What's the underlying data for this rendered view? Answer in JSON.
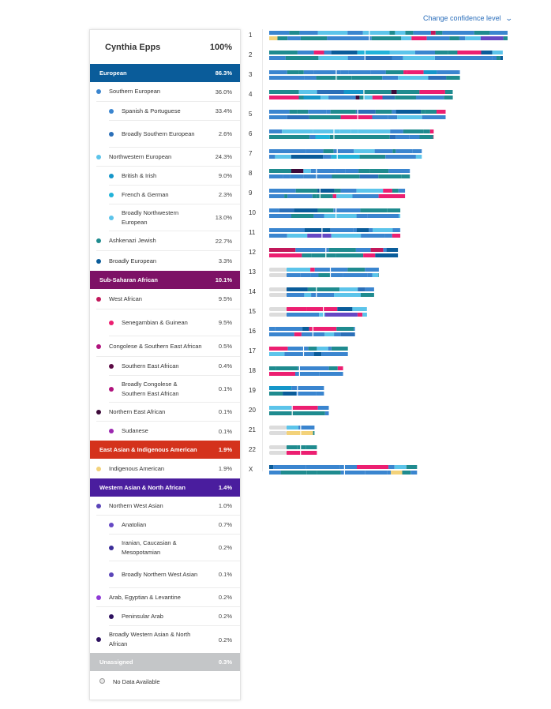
{
  "header": {
    "confidence_link": "Change confidence level"
  },
  "profile": {
    "name": "Cynthia Epps",
    "total": "100%"
  },
  "ancestry": [
    {
      "type": "cat",
      "label": "European",
      "pct": "86.3%",
      "color": "#0a5c9a",
      "h": 23
    },
    {
      "type": "l1",
      "label": "Southern European",
      "pct": "36.0%",
      "color": "#3a85cf",
      "h": 25
    },
    {
      "type": "l2",
      "label": "Spanish & Portuguese",
      "pct": "33.4%",
      "color": "#3a85cf",
      "h": 24
    },
    {
      "type": "l2",
      "label": "Broadly Southern European",
      "pct": "2.6%",
      "color": "#2b6fb8",
      "h": 34
    },
    {
      "type": "l1",
      "label": "Northwestern European",
      "pct": "24.3%",
      "color": "#5cc4ea",
      "h": 24
    },
    {
      "type": "l2",
      "label": "British & Irish",
      "pct": "9.0%",
      "color": "#1596c9",
      "h": 24
    },
    {
      "type": "l2",
      "label": "French & German",
      "pct": "2.3%",
      "color": "#22b3d9",
      "h": 24
    },
    {
      "type": "l2",
      "label": "Broadly Northwestern European",
      "pct": "13.0%",
      "color": "#5cc4ea",
      "h": 34
    },
    {
      "type": "l1",
      "label": "Ashkenazi Jewish",
      "pct": "22.7%",
      "color": "#1f8b8f",
      "h": 25
    },
    {
      "type": "l1",
      "label": "Broadly European",
      "pct": "3.3%",
      "color": "#0a5c9a",
      "h": 25,
      "last": true
    },
    {
      "type": "cat",
      "label": "Sub-Saharan African",
      "pct": "10.1%",
      "color": "#7d1266",
      "h": 23
    },
    {
      "type": "l1",
      "label": "West African",
      "pct": "9.5%",
      "color": "#c2185b",
      "h": 26
    },
    {
      "type": "l2",
      "label": "Senegambian & Guinean",
      "pct": "9.5%",
      "color": "#ec1f71",
      "h": 34
    },
    {
      "type": "l1",
      "label": "Congolese & Southern East African",
      "pct": "0.5%",
      "color": "#b0137d",
      "h": 26
    },
    {
      "type": "l2",
      "label": "Southern East African",
      "pct": "0.4%",
      "color": "#5c0b45",
      "h": 24
    },
    {
      "type": "l2",
      "label": "Broadly Congolese & Southern East African",
      "pct": "0.1%",
      "color": "#b0137d",
      "h": 34
    },
    {
      "type": "l1",
      "label": "Northern East African",
      "pct": "0.1%",
      "color": "#3d0a3a",
      "h": 24
    },
    {
      "type": "l2",
      "label": "Sudanese",
      "pct": "0.1%",
      "color": "#9c27b0",
      "h": 24,
      "last": true
    },
    {
      "type": "cat",
      "label": "East Asian & Indigenous American",
      "pct": "1.9%",
      "color": "#d4321c",
      "h": 23
    },
    {
      "type": "l1",
      "label": "Indigenous American",
      "pct": "1.9%",
      "color": "#f3d27a",
      "h": 25,
      "last": true
    },
    {
      "type": "cat",
      "label": "Western Asian & North African",
      "pct": "1.4%",
      "color": "#4a1d9e",
      "h": 23
    },
    {
      "type": "l1",
      "label": "Northern West Asian",
      "pct": "1.0%",
      "color": "#5a44b8",
      "h": 24
    },
    {
      "type": "l2",
      "label": "Anatolian",
      "pct": "0.7%",
      "color": "#6548c4",
      "h": 24
    },
    {
      "type": "l2",
      "label": "Iranian, Caucasian & Mesopotamian",
      "pct": "0.2%",
      "color": "#3c2e99",
      "h": 34
    },
    {
      "type": "l2",
      "label": "Broadly Northern West Asian",
      "pct": "0.1%",
      "color": "#5a44b8",
      "h": 34
    },
    {
      "type": "l1",
      "label": "Arab, Egyptian & Levantine",
      "pct": "0.2%",
      "color": "#8f3ad6",
      "h": 24
    },
    {
      "type": "l2",
      "label": "Peninsular Arab",
      "pct": "0.2%",
      "color": "#2e1260",
      "h": 24
    },
    {
      "type": "l1",
      "label": "Broadly Western Asian & North African",
      "pct": "0.2%",
      "color": "#2e1260",
      "h": 34,
      "last": true
    },
    {
      "type": "cat",
      "label": "Unassigned",
      "pct": "0.3%",
      "color": "#c4c6c8",
      "h": 23
    },
    {
      "type": "nodata",
      "label": "No Data Available",
      "pct": "",
      "color": "#e9e9e9",
      "h": 26
    }
  ],
  "chromosomes": {
    "labels": [
      "1",
      "2",
      "3",
      "4",
      "5",
      "6",
      "7",
      "8",
      "9",
      "10",
      "11",
      "12",
      "13",
      "14",
      "15",
      "16",
      "17",
      "18",
      "19",
      "20",
      "21",
      "22",
      "X"
    ],
    "relative_lengths": [
      1.0,
      0.98,
      0.8,
      0.77,
      0.74,
      0.69,
      0.64,
      0.59,
      0.57,
      0.55,
      0.55,
      0.54,
      0.46,
      0.44,
      0.41,
      0.36,
      0.33,
      0.31,
      0.23,
      0.25,
      0.19,
      0.2,
      0.62
    ],
    "palette": [
      "#3a85cf",
      "#1f8b8f",
      "#5cc4ea",
      "#ec1f71",
      "#0a5c9a",
      "#2b6fb8",
      "#6548c4",
      "#f3d27a",
      "#3d0a3a",
      "#1596c9",
      "#22b3d9",
      "#c2185b"
    ]
  }
}
